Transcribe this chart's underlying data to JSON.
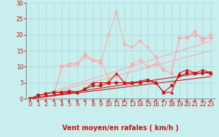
{
  "xlabel": "Vent moyen/en rafales ( km/h )",
  "xlim": [
    -0.5,
    23.5
  ],
  "ylim": [
    0,
    30
  ],
  "xticks": [
    0,
    1,
    2,
    3,
    4,
    5,
    6,
    7,
    8,
    9,
    10,
    11,
    12,
    13,
    14,
    15,
    16,
    17,
    18,
    19,
    20,
    21,
    22,
    23
  ],
  "yticks": [
    0,
    5,
    10,
    15,
    20,
    25,
    30
  ],
  "bg_color": "#c8eeee",
  "grid_color": "#aadddd",
  "series": [
    {
      "color": "#ffaaaa",
      "linewidth": 0.8,
      "marker": "*",
      "markersize": 4,
      "y": [
        0,
        1,
        1,
        1,
        10,
        10,
        11,
        13,
        12,
        11,
        20,
        27,
        17,
        16,
        18,
        16,
        13,
        9,
        8,
        19,
        19,
        21,
        18,
        20
      ]
    },
    {
      "color": "#ffaaaa",
      "linewidth": 0.8,
      "marker": "D",
      "markersize": 3,
      "y": [
        0,
        1,
        1,
        1,
        10,
        11,
        11,
        14,
        12,
        12,
        6,
        7,
        5,
        11,
        12,
        10,
        11,
        9,
        8,
        19,
        19,
        20,
        19,
        19
      ]
    },
    {
      "color": "#ffaaaa",
      "linewidth": 0.8,
      "marker": null,
      "markersize": 0,
      "y": [
        0,
        0.78,
        1.57,
        2.35,
        3.13,
        3.91,
        4.7,
        5.48,
        6.26,
        7.04,
        7.83,
        8.61,
        9.39,
        10.17,
        10.96,
        11.74,
        12.52,
        13.3,
        14.09,
        14.87,
        15.65,
        16.43,
        17.22,
        18.0
      ]
    },
    {
      "color": "#ffaaaa",
      "linewidth": 0.8,
      "marker": null,
      "markersize": 0,
      "y": [
        0,
        0.65,
        1.3,
        1.96,
        2.61,
        3.26,
        3.91,
        4.57,
        5.22,
        5.87,
        6.52,
        7.17,
        7.83,
        8.48,
        9.13,
        9.78,
        10.43,
        11.09,
        11.74,
        12.39,
        13.04,
        13.7,
        14.35,
        15.0
      ]
    },
    {
      "color": "#cc1111",
      "linewidth": 0.8,
      "marker": "^",
      "markersize": 3,
      "y": [
        0,
        1,
        1.5,
        2,
        2,
        2.5,
        2,
        3,
        5,
        5,
        5,
        8,
        5,
        5,
        5.5,
        6,
        5,
        2,
        2,
        8,
        9,
        8,
        9,
        8
      ]
    },
    {
      "color": "#cc1111",
      "linewidth": 0.8,
      "marker": "s",
      "markersize": 2.5,
      "y": [
        0,
        1,
        1.5,
        2,
        2,
        2,
        2,
        3,
        4,
        4,
        5,
        5,
        5,
        5,
        5,
        5.5,
        5,
        2,
        4,
        7,
        8,
        8,
        8,
        8
      ]
    },
    {
      "color": "#cc1111",
      "linewidth": 0.8,
      "marker": null,
      "markersize": 0,
      "y": [
        0,
        0.37,
        0.74,
        1.1,
        1.47,
        1.84,
        2.2,
        2.57,
        2.94,
        3.3,
        3.67,
        4.04,
        4.4,
        4.77,
        5.14,
        5.5,
        5.87,
        6.24,
        6.6,
        6.97,
        7.34,
        7.7,
        8.07,
        8.44
      ]
    },
    {
      "color": "#cc1111",
      "linewidth": 0.8,
      "marker": null,
      "markersize": 0,
      "y": [
        0,
        0.3,
        0.6,
        0.9,
        1.2,
        1.5,
        1.8,
        2.1,
        2.4,
        2.7,
        3.0,
        3.3,
        3.6,
        3.9,
        4.2,
        4.5,
        4.8,
        5.1,
        5.4,
        5.7,
        6.0,
        6.3,
        6.6,
        6.9
      ]
    }
  ],
  "arrow_color": "#cc1111",
  "xlabel_fontsize": 7,
  "tick_fontsize": 6,
  "xlabel_color": "#cc1111",
  "tick_color": "#cc1111",
  "spine_color": "#888888"
}
